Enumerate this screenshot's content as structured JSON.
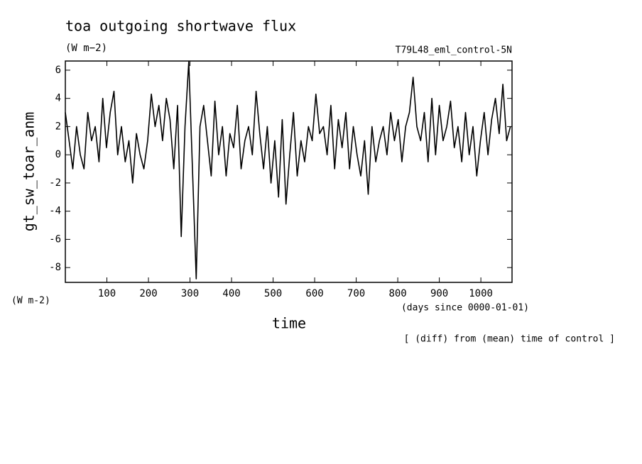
{
  "chart_data": {
    "type": "line",
    "title": "toa outgoing shortwave flux",
    "subtitle": "(W m−2)",
    "run_label": "T79L48_eml_control-5N",
    "y_label": "gt_sw_toar_anm",
    "y_units": "(W m-2)",
    "x_label": "time",
    "x_units": "(days since 0000-01-01)",
    "note": "[ (diff) from (mean) time of control ]",
    "grid": false,
    "xlim": [
      0,
      1075
    ],
    "ylim": [
      -9.05,
      6.65
    ],
    "xticks": [
      100,
      200,
      300,
      400,
      500,
      600,
      700,
      800,
      900,
      1000
    ],
    "yticks": [
      -8,
      -6,
      -4,
      -2,
      0,
      2,
      4,
      6
    ],
    "series": [
      {
        "name": "gt_sw_toar_anm",
        "color": "#000000",
        "x": [
          0,
          9,
          18,
          27,
          36,
          45,
          54,
          63,
          72,
          81,
          90,
          99,
          108,
          117,
          126,
          135,
          144,
          153,
          162,
          171,
          180,
          189,
          198,
          207,
          216,
          225,
          234,
          243,
          252,
          261,
          270,
          279,
          288,
          297,
          306,
          315,
          324,
          333,
          342,
          351,
          360,
          369,
          378,
          387,
          396,
          405,
          414,
          423,
          432,
          441,
          450,
          459,
          468,
          477,
          486,
          495,
          504,
          513,
          522,
          531,
          540,
          549,
          558,
          567,
          576,
          585,
          594,
          603,
          612,
          621,
          630,
          639,
          648,
          657,
          666,
          675,
          684,
          693,
          702,
          711,
          720,
          729,
          738,
          747,
          756,
          765,
          774,
          783,
          792,
          801,
          810,
          819,
          828,
          837,
          846,
          855,
          864,
          873,
          882,
          891,
          900,
          909,
          918,
          927,
          936,
          945,
          954,
          963,
          972,
          981,
          990,
          999,
          1008,
          1017,
          1026,
          1035,
          1044,
          1053,
          1062,
          1071
        ],
        "values": [
          3,
          1,
          -1,
          2,
          0,
          -1,
          3,
          1,
          2,
          -0.5,
          4,
          0.5,
          3,
          4.5,
          0,
          2,
          -0.5,
          1,
          -2,
          1.5,
          0,
          -1,
          1,
          4.3,
          2,
          3.5,
          1,
          4,
          2.5,
          -1,
          3.5,
          -5.8,
          2,
          6.6,
          -1,
          -8.8,
          2,
          3.5,
          1,
          -1.5,
          3.8,
          0,
          2,
          -1.5,
          1.5,
          0.5,
          3.5,
          -1,
          1,
          2,
          0,
          4.5,
          1.5,
          -1,
          2,
          -2,
          1,
          -3,
          2.5,
          -3.5,
          0,
          3,
          -1.5,
          1,
          -0.5,
          2,
          1,
          4.3,
          1.5,
          2,
          0,
          3.5,
          -1,
          2.5,
          0.5,
          3,
          -1,
          2,
          0,
          -1.5,
          1,
          -2.8,
          2,
          -0.5,
          1,
          2,
          0,
          3,
          1,
          2.5,
          -0.5,
          2,
          3,
          5.5,
          2,
          1,
          3,
          -0.5,
          4,
          0,
          3.5,
          1,
          2,
          3.8,
          0.5,
          2,
          -0.5,
          3,
          0,
          2,
          -1.5,
          1,
          3,
          0,
          2.5,
          4,
          1.5,
          5,
          1,
          2
        ]
      }
    ]
  }
}
